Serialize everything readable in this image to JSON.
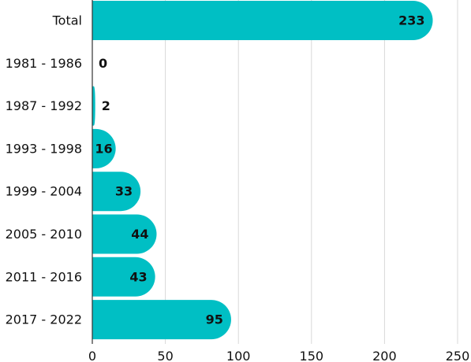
{
  "chart_data": {
    "type": "bar",
    "orientation": "horizontal",
    "categories": [
      "Total",
      "1981 - 1986",
      "1987 - 1992",
      "1993 - 1998",
      "1999 - 2004",
      "2005 - 2010",
      "2011 - 2016",
      "2017 - 2022"
    ],
    "values": [
      233,
      0,
      2,
      16,
      33,
      44,
      43,
      95
    ],
    "title": "",
    "xlabel": "",
    "ylabel": "",
    "xlim": [
      0,
      250
    ],
    "xticks": [
      0,
      50,
      100,
      150,
      200,
      250
    ],
    "grid": "vertical",
    "legend": "none",
    "data_labels": true,
    "bar_color": "#00bfc4"
  }
}
